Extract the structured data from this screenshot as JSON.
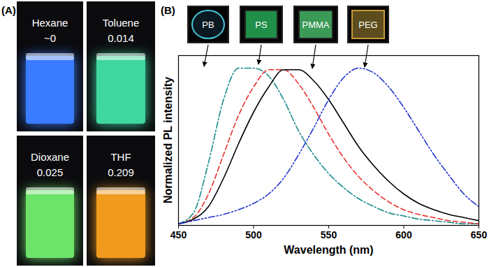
{
  "chart_data": {
    "type": "line",
    "title": "(B)",
    "x_label": "Wavelength (nm)",
    "y_label": "Normalized PL intensity",
    "x": [
      450,
      460,
      470,
      480,
      490,
      500,
      510,
      520,
      530,
      540,
      550,
      560,
      570,
      580,
      590,
      600,
      610,
      620,
      630,
      640,
      650
    ],
    "series": [
      {
        "name": "PB",
        "color": "#1a8a8a",
        "line_style": "dash-dot",
        "values": [
          0.01,
          0.08,
          0.4,
          0.8,
          1.0,
          1.0,
          0.95,
          0.8,
          0.6,
          0.45,
          0.33,
          0.24,
          0.17,
          0.12,
          0.08,
          0.06,
          0.04,
          0.03,
          0.02,
          0.01,
          0.01
        ]
      },
      {
        "name": "PS",
        "color": "#e8312f",
        "line_style": "dashed",
        "values": [
          0.01,
          0.05,
          0.2,
          0.45,
          0.7,
          0.88,
          0.99,
          0.99,
          0.9,
          0.75,
          0.58,
          0.43,
          0.31,
          0.22,
          0.15,
          0.1,
          0.07,
          0.05,
          0.03,
          0.02,
          0.01
        ]
      },
      {
        "name": "PMMA",
        "color": "#000000",
        "line_style": "solid",
        "values": [
          0.01,
          0.04,
          0.12,
          0.3,
          0.52,
          0.72,
          0.88,
          0.99,
          0.99,
          0.92,
          0.8,
          0.65,
          0.5,
          0.38,
          0.28,
          0.2,
          0.14,
          0.1,
          0.07,
          0.05,
          0.03
        ]
      },
      {
        "name": "PEG",
        "color": "#2233cc",
        "line_style": "dash-dot-dot",
        "values": [
          0.01,
          0.03,
          0.05,
          0.07,
          0.1,
          0.14,
          0.2,
          0.3,
          0.45,
          0.62,
          0.8,
          0.94,
          1.0,
          0.97,
          0.88,
          0.75,
          0.6,
          0.45,
          0.32,
          0.2,
          0.12
        ]
      }
    ],
    "xlim": [
      450,
      650
    ],
    "xticks": [
      450,
      500,
      550,
      600,
      650
    ],
    "ylim": [
      0,
      1.08
    ],
    "tick_labels": "x"
  },
  "panel_a": {
    "title": "(A)",
    "vials": [
      {
        "solvent": "Hexane",
        "value": {
          "value": 0,
          "label": "~0"
        },
        "color": "#3a7bff"
      },
      {
        "solvent": "Toluene",
        "value": 0.014,
        "color": "#3fd6a0"
      },
      {
        "solvent": "Dioxane",
        "value": 0.025,
        "color": "#6ee36a"
      },
      {
        "solvent": "THF",
        "value": 0.209,
        "color": "#f09a1e"
      }
    ]
  }
}
